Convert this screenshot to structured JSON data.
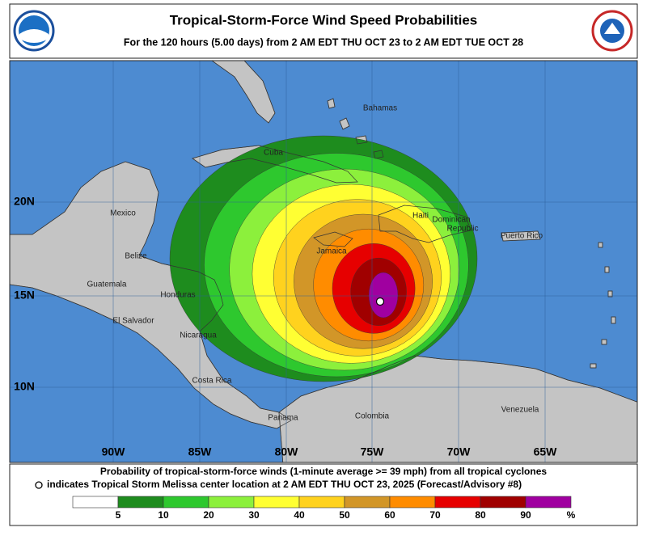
{
  "header": {
    "title": "Tropical-Storm-Force Wind Speed Probabilities",
    "subtitle": "For the 120 hours (5.00 days) from 2 AM EDT THU OCT 23 to 2 AM EDT TUE OCT 28"
  },
  "map": {
    "lon_labels": [
      "90W",
      "85W",
      "80W",
      "75W",
      "70W",
      "65W"
    ],
    "lat_labels": [
      "20N",
      "15N",
      "10N"
    ],
    "place_labels": [
      "Bahamas",
      "Cuba",
      "Mexico",
      "Belize",
      "Guatemala",
      "Honduras",
      "El Salvador",
      "Nicaragua",
      "Costa Rica",
      "Panama",
      "Colombia",
      "Venezuela",
      "Haiti",
      "Dominican",
      "Republic",
      "Jamaica",
      "Puerto Rico"
    ]
  },
  "legend": {
    "line1": "Probability of tropical-storm-force winds (1-minute average >= 39 mph) from all tropical cyclones",
    "line2": "indicates Tropical Storm Melissa center location at 2 AM EDT THU OCT 23, 2025 (Forecast/Advisory #8)",
    "ticks": [
      "5",
      "10",
      "20",
      "30",
      "40",
      "50",
      "60",
      "70",
      "80",
      "90"
    ],
    "unit": "%",
    "colors": [
      "#ffffff",
      "#1e8c1e",
      "#2ec82e",
      "#8cf03c",
      "#ffff33",
      "#ffd21e",
      "#d29628",
      "#ff8c00",
      "#e60000",
      "#a00000",
      "#a000a0"
    ]
  }
}
